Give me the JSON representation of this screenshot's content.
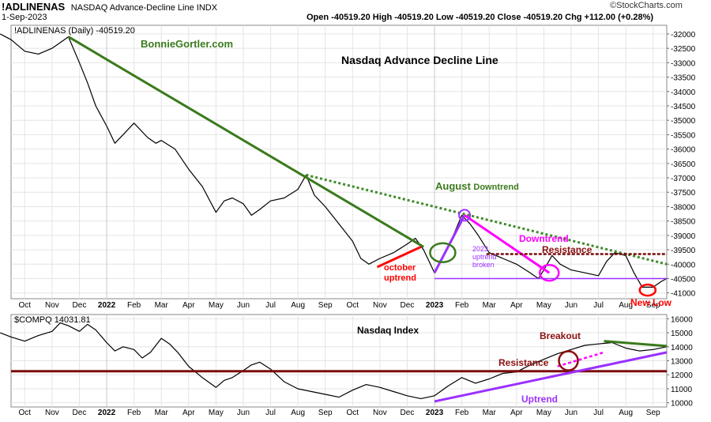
{
  "header": {
    "symbol": "!ADLINENAS",
    "description": "NASDAQ Advance-Decline Line INDX",
    "date": "1-Sep-2023",
    "ohlc": "Open -40519.20  High -40519.20  Low -40519.20  Close -40519.20  Chg +112.00 (+0.28%)",
    "brand": "©StockCharts.com"
  },
  "colors": {
    "price_line": "#000000",
    "long_downtrend": "#3a7a1c",
    "dotted_downtrend": "#3d8b2a",
    "resistance_line": "#7a0a0a",
    "purple": "#9b30ff",
    "magenta": "#ff00ff",
    "red": "#ff0000",
    "dark_red": "#8b1010",
    "green_text": "#3a7a1c"
  },
  "chart_data": [
    {
      "type": "line",
      "legend": "!ADLINENAS (Daily) -40519.20",
      "watermark": "BonnieGortler.com",
      "title": "Nasdaq Advance Decline Line",
      "x_ticks": [
        "Oct",
        "Nov",
        "Dec",
        "2022",
        "Feb",
        "Mar",
        "Apr",
        "May",
        "Jun",
        "Jul",
        "Aug",
        "Sep",
        "Oct",
        "Nov",
        "Dec",
        "2023",
        "Feb",
        "Mar",
        "Apr",
        "May",
        "Jun",
        "Jul",
        "Aug",
        "Sep"
      ],
      "y_ticks": [
        -32000,
        -32500,
        -33000,
        -33500,
        -34000,
        -34500,
        -35000,
        -35500,
        -36000,
        -36500,
        -37000,
        -37500,
        -38000,
        -38500,
        -39000,
        -39500,
        -40000,
        -40500,
        -41000
      ],
      "ylim": [
        -41200,
        -31700
      ],
      "x_range_months": [
        -0.5,
        23.5
      ],
      "series": {
        "values": [
          [
            -0.9,
            -32000
          ],
          [
            -0.5,
            -32200
          ],
          [
            0.0,
            -32600
          ],
          [
            0.5,
            -32700
          ],
          [
            1.0,
            -32500
          ],
          [
            1.3,
            -32300
          ],
          [
            1.6,
            -32100
          ],
          [
            2.0,
            -33000
          ],
          [
            2.3,
            -33700
          ],
          [
            2.6,
            -34500
          ],
          [
            3.0,
            -35200
          ],
          [
            3.3,
            -35800
          ],
          [
            3.6,
            -35500
          ],
          [
            4.0,
            -35100
          ],
          [
            4.5,
            -35600
          ],
          [
            4.8,
            -35800
          ],
          [
            5.0,
            -35700
          ],
          [
            5.5,
            -36000
          ],
          [
            6.0,
            -36700
          ],
          [
            6.5,
            -37300
          ],
          [
            7.0,
            -38200
          ],
          [
            7.3,
            -37800
          ],
          [
            7.6,
            -37700
          ],
          [
            8.0,
            -37900
          ],
          [
            8.3,
            -38300
          ],
          [
            8.6,
            -38100
          ],
          [
            9.0,
            -37800
          ],
          [
            9.5,
            -37700
          ],
          [
            10.0,
            -37400
          ],
          [
            10.3,
            -36900
          ],
          [
            10.6,
            -37600
          ],
          [
            11.0,
            -38000
          ],
          [
            11.5,
            -38600
          ],
          [
            12.0,
            -39200
          ],
          [
            12.3,
            -39800
          ],
          [
            12.6,
            -40000
          ],
          [
            13.0,
            -39800
          ],
          [
            13.5,
            -39600
          ],
          [
            14.0,
            -39300
          ],
          [
            14.3,
            -39100
          ],
          [
            14.6,
            -39500
          ],
          [
            15.0,
            -40300
          ],
          [
            15.3,
            -39800
          ],
          [
            15.6,
            -39200
          ],
          [
            16.0,
            -38300
          ],
          [
            16.3,
            -38600
          ],
          [
            16.6,
            -39000
          ],
          [
            17.0,
            -39600
          ],
          [
            17.5,
            -39800
          ],
          [
            18.0,
            -40000
          ],
          [
            18.5,
            -40300
          ],
          [
            18.8,
            -40500
          ],
          [
            19.0,
            -40200
          ],
          [
            19.3,
            -39700
          ],
          [
            19.6,
            -40000
          ],
          [
            20.0,
            -40200
          ],
          [
            20.5,
            -40300
          ],
          [
            21.0,
            -40400
          ],
          [
            21.3,
            -39900
          ],
          [
            21.6,
            -39600
          ],
          [
            22.0,
            -39700
          ],
          [
            22.3,
            -40300
          ],
          [
            22.6,
            -40800
          ],
          [
            23.0,
            -40800
          ],
          [
            23.3,
            -40600
          ],
          [
            23.5,
            -40500
          ]
        ]
      },
      "annotations": [
        {
          "label": "August Downtrend",
          "color": "#3a7a1c"
        },
        {
          "label": "Downtrend",
          "color": "#ff00ff"
        },
        {
          "label": "Resistance",
          "color": "#8b1010"
        },
        {
          "label": "2023 uptrend broken",
          "color": "#9b30ff"
        },
        {
          "label": "October uptrend",
          "color": "#ff0000"
        },
        {
          "label": "New Low",
          "color": "#ff0000"
        }
      ],
      "labels": {
        "august": "August",
        "downtrend_word": "Downtrend",
        "downtrend": "Downtrend",
        "resistance": "Resistance",
        "uptrend_line1": "2023",
        "uptrend_line2": "uptrend",
        "uptrend_line3": "broken",
        "october": "october",
        "uptrend_word": "uptrend",
        "new_low": "New Low"
      }
    },
    {
      "type": "line",
      "legend": "$COMPQ 14031.81",
      "title": "Nasdaq Index",
      "x_ticks": [
        "Oct",
        "Nov",
        "Dec",
        "2022",
        "Feb",
        "Mar",
        "Apr",
        "May",
        "Jun",
        "Jul",
        "Aug",
        "Sep",
        "Oct",
        "Nov",
        "Dec",
        "2023",
        "Feb",
        "Mar",
        "Apr",
        "May",
        "Jun",
        "Jul",
        "Aug",
        "Sep"
      ],
      "y_ticks": [
        16000,
        15000,
        14000,
        13000,
        12000,
        11000,
        10000
      ],
      "ylim": [
        9700,
        16300
      ],
      "x_range_months": [
        -0.5,
        23.5
      ],
      "series": {
        "values": [
          [
            -0.9,
            15000
          ],
          [
            -0.5,
            14700
          ],
          [
            0.0,
            14400
          ],
          [
            0.5,
            14800
          ],
          [
            1.0,
            15100
          ],
          [
            1.3,
            15700
          ],
          [
            1.6,
            15500
          ],
          [
            2.0,
            15100
          ],
          [
            2.3,
            15600
          ],
          [
            2.6,
            15200
          ],
          [
            3.0,
            14300
          ],
          [
            3.3,
            13700
          ],
          [
            3.6,
            14000
          ],
          [
            4.0,
            13800
          ],
          [
            4.3,
            13200
          ],
          [
            4.6,
            13600
          ],
          [
            5.0,
            14600
          ],
          [
            5.3,
            14200
          ],
          [
            5.6,
            13600
          ],
          [
            6.0,
            12600
          ],
          [
            6.5,
            11800
          ],
          [
            7.0,
            11100
          ],
          [
            7.3,
            11600
          ],
          [
            7.6,
            11800
          ],
          [
            8.0,
            12300
          ],
          [
            8.3,
            12700
          ],
          [
            8.6,
            12900
          ],
          [
            9.0,
            12400
          ],
          [
            9.5,
            11500
          ],
          [
            10.0,
            11000
          ],
          [
            10.5,
            10800
          ],
          [
            11.0,
            10600
          ],
          [
            11.5,
            10400
          ],
          [
            12.0,
            10900
          ],
          [
            12.5,
            11300
          ],
          [
            13.0,
            11100
          ],
          [
            13.5,
            10800
          ],
          [
            14.0,
            10500
          ],
          [
            14.5,
            10300
          ],
          [
            15.0,
            10500
          ],
          [
            15.5,
            11200
          ],
          [
            16.0,
            11800
          ],
          [
            16.5,
            11400
          ],
          [
            17.0,
            11700
          ],
          [
            17.5,
            12100
          ],
          [
            18.0,
            12200
          ],
          [
            18.5,
            12700
          ],
          [
            19.0,
            13100
          ],
          [
            19.5,
            13500
          ],
          [
            20.0,
            13800
          ],
          [
            20.5,
            14100
          ],
          [
            21.0,
            14200
          ],
          [
            21.5,
            14300
          ],
          [
            22.0,
            13900
          ],
          [
            22.5,
            13700
          ],
          [
            23.0,
            13800
          ],
          [
            23.5,
            14000
          ]
        ]
      },
      "annotations": [
        {
          "label": "Breakout",
          "color": "#8b1010"
        },
        {
          "label": "Resistance",
          "color": "#8b1010"
        },
        {
          "label": "Uptrend",
          "color": "#9b30ff"
        }
      ]
    }
  ]
}
